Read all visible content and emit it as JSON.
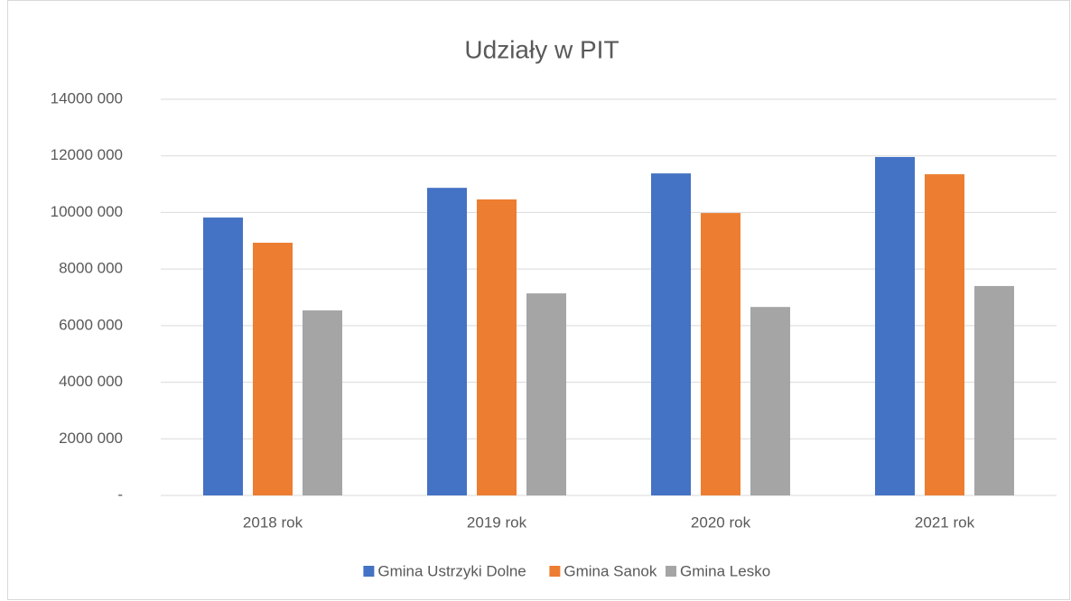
{
  "chart_data": {
    "type": "bar",
    "title": "Udziały w PIT",
    "categories": [
      "2018 rok",
      "2019 rok",
      "2020 rok",
      "2021 rok"
    ],
    "series": [
      {
        "name": "Gmina Ustrzyki Dolne",
        "color": "#4472c4",
        "values": [
          9820000,
          10870000,
          11380000,
          11960000
        ]
      },
      {
        "name": "Gmina Sanok",
        "color": "#ed7d31",
        "values": [
          8930000,
          10460000,
          9980000,
          11350000
        ]
      },
      {
        "name": "Gmina Lesko",
        "color": "#a5a5a5",
        "values": [
          6540000,
          7140000,
          6660000,
          7400000
        ]
      }
    ],
    "ylim": [
      0,
      14000000
    ],
    "yticks": [
      {
        "value": 0,
        "label": "-"
      },
      {
        "value": 2000000,
        "label": "2000 000"
      },
      {
        "value": 4000000,
        "label": "4000 000"
      },
      {
        "value": 6000000,
        "label": "6000 000"
      },
      {
        "value": 8000000,
        "label": "8000 000"
      },
      {
        "value": 10000000,
        "label": "10000 000"
      },
      {
        "value": 12000000,
        "label": "12000 000"
      },
      {
        "value": 14000000,
        "label": "14000 000"
      }
    ],
    "grid": true,
    "legend": "bottom"
  }
}
